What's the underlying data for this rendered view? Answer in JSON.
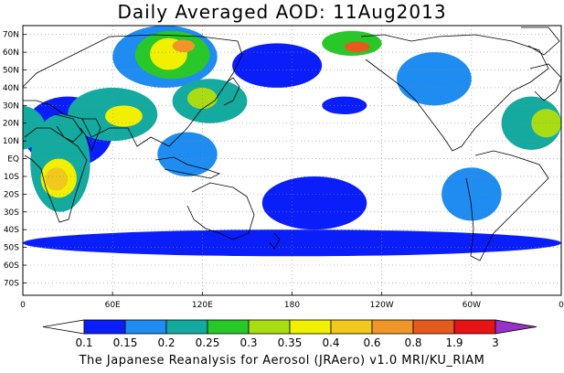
{
  "title": "Daily Averaged AOD: 11Aug2013",
  "footer": "The Japanese Reanalysis for Aerosol (JRAero) v1.0 MRI/KU_RIAM",
  "map": {
    "lon_range": [
      0,
      360
    ],
    "lat_range": [
      -77,
      75
    ],
    "lat_ticks": [
      "70N",
      "60N",
      "50N",
      "40N",
      "30N",
      "20N",
      "10N",
      "EQ",
      "10S",
      "20S",
      "30S",
      "40S",
      "50S",
      "60S",
      "70S"
    ],
    "lat_values": [
      70,
      60,
      50,
      40,
      30,
      20,
      10,
      0,
      -10,
      -20,
      -30,
      -40,
      -50,
      -60,
      -70
    ],
    "lon_ticks": [
      "0",
      "60E",
      "120E",
      "180",
      "120W",
      "60W",
      "0"
    ],
    "lon_values": [
      0,
      60,
      120,
      180,
      240,
      300,
      360
    ],
    "grid": "dotted"
  },
  "colorbar": {
    "levels": [
      "0.1",
      "0.15",
      "0.2",
      "0.25",
      "0.3",
      "0.35",
      "0.4",
      "0.6",
      "0.8",
      "1.9",
      "3"
    ],
    "colors": [
      "#ffffff",
      "#0a1efa",
      "#1e8cf0",
      "#14aaa0",
      "#28c828",
      "#aadc14",
      "#f0f000",
      "#f0c81e",
      "#f09628",
      "#e65a1e",
      "#e61414",
      "#9632c8"
    ]
  },
  "aod_regions": [
    {
      "lon": [
        0,
        60
      ],
      "lat": [
        -5,
        35
      ],
      "level": 1
    },
    {
      "lon": [
        5,
        45
      ],
      "lat": [
        -30,
        25
      ],
      "level": 3
    },
    {
      "lon": [
        12,
        36
      ],
      "lat": [
        -22,
        0
      ],
      "level": 6
    },
    {
      "lon": [
        15,
        30
      ],
      "lat": [
        -18,
        -5
      ],
      "level": 7
    },
    {
      "lon": [
        -20,
        15
      ],
      "lat": [
        5,
        30
      ],
      "level": 3
    },
    {
      "lon": [
        -25,
        -5
      ],
      "lat": [
        12,
        28
      ],
      "level": 5
    },
    {
      "lon": [
        30,
        90
      ],
      "lat": [
        10,
        40
      ],
      "level": 3
    },
    {
      "lon": [
        55,
        80
      ],
      "lat": [
        18,
        30
      ],
      "level": 6
    },
    {
      "lon": [
        60,
        130
      ],
      "lat": [
        40,
        75
      ],
      "level": 2
    },
    {
      "lon": [
        75,
        125
      ],
      "lat": [
        45,
        72
      ],
      "level": 4
    },
    {
      "lon": [
        85,
        110
      ],
      "lat": [
        50,
        68
      ],
      "level": 6
    },
    {
      "lon": [
        100,
        115
      ],
      "lat": [
        60,
        67
      ],
      "level": 8
    },
    {
      "lon": [
        100,
        150
      ],
      "lat": [
        20,
        45
      ],
      "level": 3
    },
    {
      "lon": [
        110,
        130
      ],
      "lat": [
        28,
        40
      ],
      "level": 5
    },
    {
      "lon": [
        90,
        130
      ],
      "lat": [
        -10,
        15
      ],
      "level": 2
    },
    {
      "lon": [
        140,
        200
      ],
      "lat": [
        40,
        65
      ],
      "level": 1
    },
    {
      "lon": [
        200,
        240
      ],
      "lat": [
        58,
        72
      ],
      "level": 4
    },
    {
      "lon": [
        215,
        232
      ],
      "lat": [
        60,
        66
      ],
      "level": 9
    },
    {
      "lon": [
        250,
        300
      ],
      "lat": [
        30,
        60
      ],
      "level": 2
    },
    {
      "lon": [
        320,
        360
      ],
      "lat": [
        5,
        35
      ],
      "level": 3
    },
    {
      "lon": [
        340,
        360
      ],
      "lat": [
        12,
        28
      ],
      "level": 5
    },
    {
      "lon": [
        280,
        320
      ],
      "lat": [
        -35,
        -5
      ],
      "level": 2
    },
    {
      "lon": [
        0,
        360
      ],
      "lat": [
        -55,
        -40
      ],
      "level": 1
    },
    {
      "lon": [
        160,
        230
      ],
      "lat": [
        -40,
        -10
      ],
      "level": 1
    },
    {
      "lon": [
        200,
        230
      ],
      "lat": [
        25,
        35
      ],
      "level": 1
    }
  ]
}
